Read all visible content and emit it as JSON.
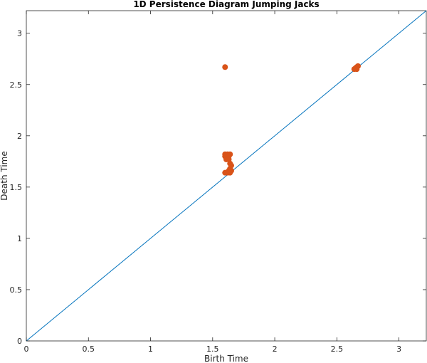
{
  "chart_data": {
    "type": "scatter",
    "title": "1D Persistence Diagram Jumping Jacks",
    "xlabel": "Birth Time",
    "ylabel": "Death Time",
    "xlim": [
      0,
      3.22
    ],
    "ylim": [
      0,
      3.22
    ],
    "x_ticks": [
      0,
      0.5,
      1,
      1.5,
      2,
      2.5,
      3
    ],
    "y_ticks": [
      0,
      0.5,
      1,
      1.5,
      2,
      2.5,
      3
    ],
    "x_tick_labels": [
      "0",
      "0.5",
      "1",
      "1.5",
      "2",
      "2.5",
      "3"
    ],
    "y_tick_labels": [
      "0",
      "0.5",
      "1",
      "1.5",
      "2",
      "2.5",
      "3"
    ],
    "grid": false,
    "diagonal_color": "#0072BD",
    "point_color": "#D95319",
    "points": [
      {
        "x": 1.6,
        "y": 2.67
      },
      {
        "x": 1.6,
        "y": 1.82
      },
      {
        "x": 1.62,
        "y": 1.82
      },
      {
        "x": 1.64,
        "y": 1.82
      },
      {
        "x": 1.6,
        "y": 1.8
      },
      {
        "x": 1.62,
        "y": 1.79
      },
      {
        "x": 1.63,
        "y": 1.8
      },
      {
        "x": 1.61,
        "y": 1.77
      },
      {
        "x": 1.63,
        "y": 1.77
      },
      {
        "x": 1.64,
        "y": 1.73
      },
      {
        "x": 1.65,
        "y": 1.71
      },
      {
        "x": 1.64,
        "y": 1.68
      },
      {
        "x": 1.65,
        "y": 1.66
      },
      {
        "x": 1.6,
        "y": 1.64
      },
      {
        "x": 1.62,
        "y": 1.64
      },
      {
        "x": 1.64,
        "y": 1.64
      },
      {
        "x": 1.63,
        "y": 1.66
      },
      {
        "x": 2.64,
        "y": 2.65
      },
      {
        "x": 2.65,
        "y": 2.66
      },
      {
        "x": 2.66,
        "y": 2.67
      },
      {
        "x": 2.67,
        "y": 2.68
      },
      {
        "x": 2.66,
        "y": 2.65
      }
    ]
  }
}
